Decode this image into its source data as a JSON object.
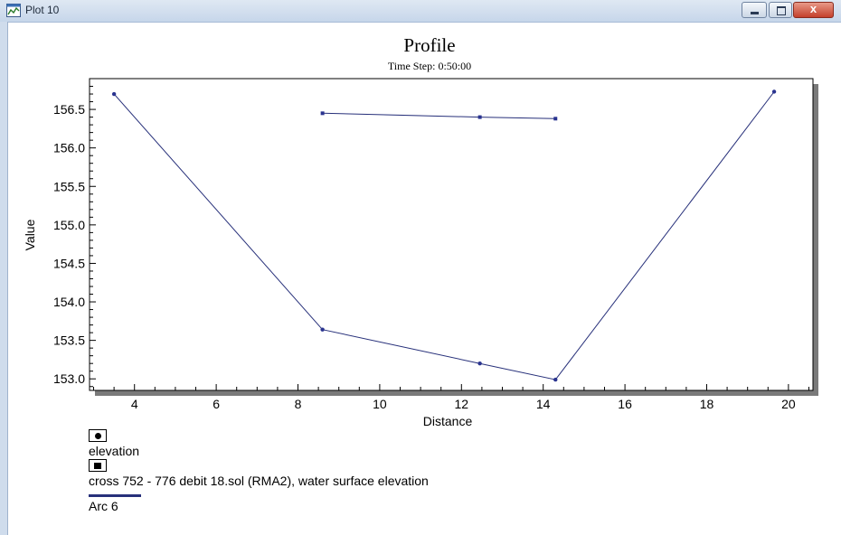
{
  "window": {
    "title": "Plot 10",
    "close_glyph": "x"
  },
  "colors": {
    "series_line": "#27307a",
    "marker": "#2a3490",
    "titlebar": "#c6d6ea",
    "close_button": "#c4402c"
  },
  "icons": [
    "plot-icon",
    "minimize-icon",
    "maximize-icon",
    "close-icon"
  ],
  "chart_data": {
    "type": "line",
    "title": "Profile",
    "subtitle": "Time Step: 0:50:00",
    "xlabel": "Distance",
    "ylabel": "Value",
    "xlim": [
      2.9,
      20.6
    ],
    "ylim": [
      152.85,
      156.9
    ],
    "xticks": [
      4,
      6,
      8,
      10,
      12,
      14,
      16,
      18,
      20
    ],
    "xtick_labels": [
      "4",
      "6",
      "8",
      "10",
      "12",
      "14",
      "16",
      "18",
      "20"
    ],
    "yticks": [
      153.0,
      153.5,
      154.0,
      154.5,
      155.0,
      155.5,
      156.0,
      156.5
    ],
    "ytick_labels": [
      "153.0",
      "153.5",
      "154.0",
      "154.5",
      "155.0",
      "155.5",
      "156.0",
      "156.5"
    ],
    "grid": false,
    "legend_position": "bottom-left",
    "series": [
      {
        "marker": "circle",
        "x": [
          3.5,
          8.6,
          12.45,
          14.3,
          19.65
        ],
        "y": [
          156.7,
          153.64,
          153.2,
          152.99,
          156.73
        ]
      },
      {
        "marker": "square",
        "x": [
          8.6,
          12.45,
          14.3
        ],
        "y": [
          156.45,
          156.4,
          156.38
        ]
      }
    ],
    "legend": [
      {
        "symbol": "circle",
        "label": "elevation"
      },
      {
        "symbol": "square",
        "label": "cross 752 - 776 debit 18.sol (RMA2), water surface elevation"
      },
      {
        "symbol": "line",
        "label": "Arc 6"
      }
    ]
  }
}
